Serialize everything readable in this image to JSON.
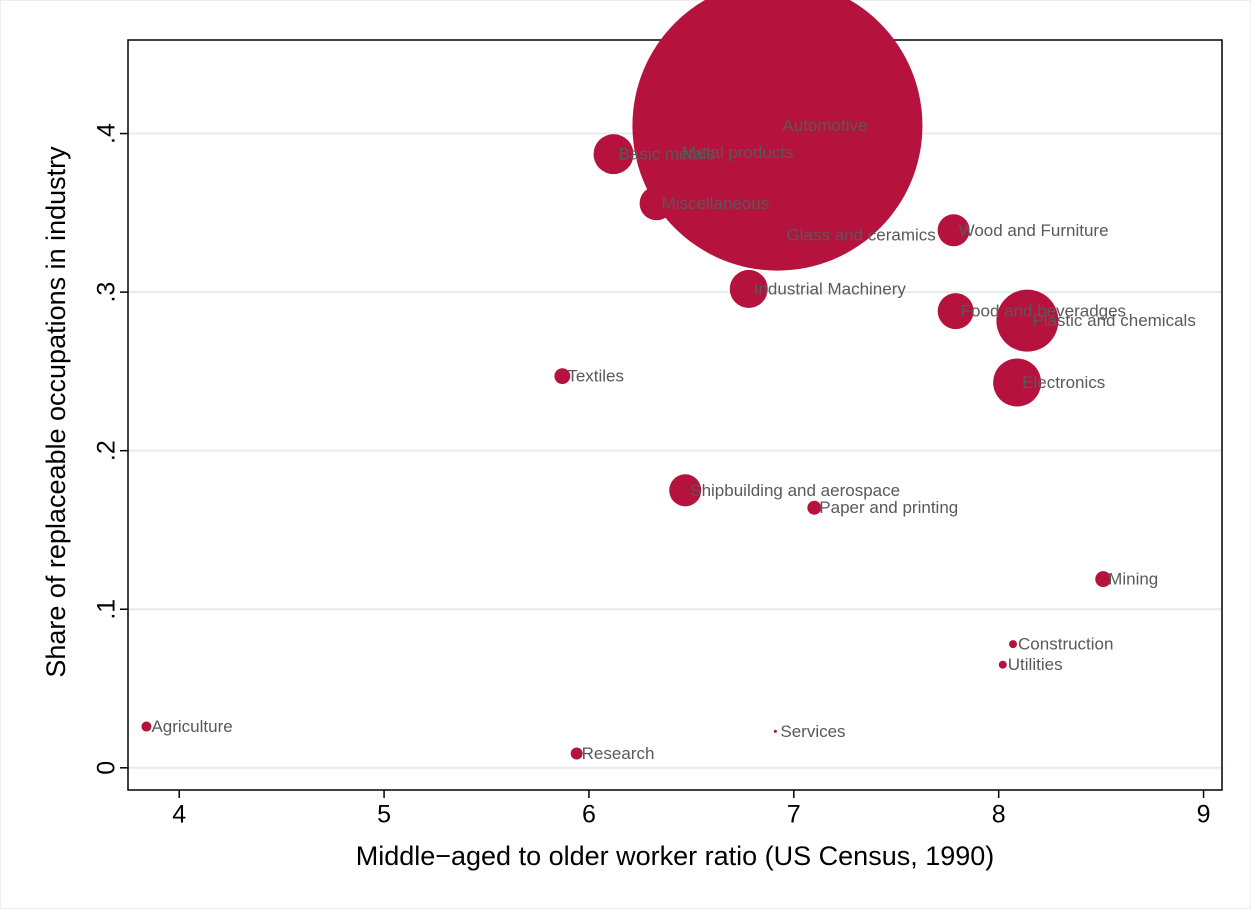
{
  "chart_data": {
    "type": "scatter",
    "x_label": "Middle−aged to older worker ratio (US Census, 1990)",
    "y_label": "Share of replaceable occupations in industry",
    "labels": [
      "Automotive",
      "Metal products",
      "Basic metals",
      "Miscellaneous",
      "Glass and ceramics",
      "Wood and Furniture",
      "Industrial Machinery",
      "Food and beveradges",
      "Plastic and chemicals",
      "Electronics",
      "Textiles",
      "Shipbuilding and aerospace",
      "Paper and printing",
      "Mining",
      "Construction",
      "Utilities",
      "Agriculture",
      "Research",
      "Services"
    ],
    "x": [
      6.92,
      6.43,
      6.12,
      6.33,
      6.94,
      7.78,
      6.78,
      7.79,
      8.14,
      8.09,
      5.87,
      6.47,
      7.1,
      8.51,
      8.07,
      8.02,
      3.84,
      5.94,
      6.91
    ],
    "values": [
      0.405,
      0.388,
      0.387,
      0.356,
      0.336,
      0.339,
      0.302,
      0.288,
      0.282,
      0.243,
      0.247,
      0.175,
      0.164,
      0.119,
      0.078,
      0.065,
      0.026,
      0.009,
      0.023
    ],
    "sizes": [
      100,
      4.28,
      1.9,
      1.37,
      0.93,
      1.22,
      1.72,
      1.54,
      4.57,
      2.74,
      0.3,
      1.22,
      0.23,
      0.3,
      0.076,
      0.076,
      0.12,
      0.17,
      0.011
    ],
    "color": "#b5123e",
    "xlim": [
      3.75,
      9.09
    ],
    "xticks": [
      4,
      5,
      6,
      7,
      8,
      9
    ],
    "ylim": [
      -0.014,
      0.459
    ],
    "yticks": [
      0,
      {
        "value": 0.1,
        "label": ".1"
      },
      {
        "value": 0.2,
        "label": ".2"
      },
      {
        "value": 0.3,
        "label": ".3"
      },
      {
        "value": 0.4,
        "label": ".4"
      }
    ],
    "grid": true
  }
}
